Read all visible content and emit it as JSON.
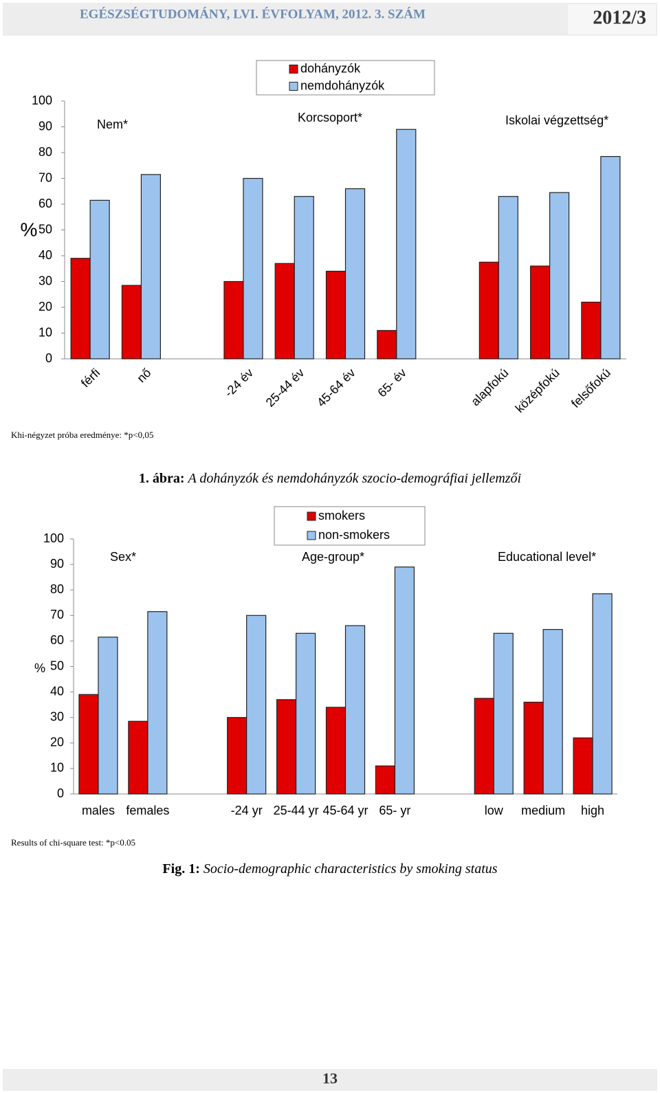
{
  "header": {
    "title": "EGÉSZSÉGTUDOMÁNY, LVI. ÉVFOLYAM, 2012. 3. SZÁM",
    "issue": "2012/3"
  },
  "chart_data": [
    {
      "type": "bar",
      "y_label": "%",
      "annotations": [
        "Nem*",
        "Korcsoport*",
        "Iskolai végzettség*"
      ],
      "categories": [
        "férfi",
        "nő",
        null,
        "-24 év",
        "25-44 év",
        "45-64 év",
        "65- év",
        null,
        "alapfokú",
        "középfokú",
        "felsőfokú"
      ],
      "series": [
        {
          "name": "dohányzók",
          "color": "#e00000",
          "values": [
            39,
            28.5,
            null,
            30,
            37,
            34,
            11,
            null,
            37.5,
            36,
            22
          ]
        },
        {
          "name": "nemdohányzók",
          "color": "#9cc3ee",
          "values": [
            61.5,
            71.5,
            null,
            70,
            63,
            66,
            89,
            null,
            63,
            64.5,
            78.5
          ]
        }
      ],
      "ylim": [
        0,
        100
      ],
      "yticks": [
        0,
        10,
        20,
        30,
        40,
        50,
        60,
        70,
        80,
        90,
        100
      ],
      "grid": false,
      "legend": "top",
      "note": "Khi-négyzet próba eredménye: *p<0,05",
      "caption_label": "1. ábra:",
      "caption": "A dohányzók és nemdohányzók szocio-demográfiai jellemzői"
    },
    {
      "type": "bar",
      "y_label": "%",
      "annotations": [
        "Sex*",
        "Age-group*",
        "Educational level*"
      ],
      "categories": [
        "males",
        "females",
        null,
        "-24 yr",
        "25-44 yr",
        "45-64 yr",
        "65- yr",
        null,
        "low",
        "medium",
        "high"
      ],
      "series": [
        {
          "name": "smokers",
          "color": "#e00000",
          "values": [
            39,
            28.5,
            null,
            30,
            37,
            34,
            11,
            null,
            37.5,
            36,
            22
          ]
        },
        {
          "name": "non-smokers",
          "color": "#9cc3ee",
          "values": [
            61.5,
            71.5,
            null,
            70,
            63,
            66,
            89,
            null,
            63,
            64.5,
            78.5
          ]
        }
      ],
      "ylim": [
        0,
        100
      ],
      "yticks": [
        0,
        10,
        20,
        30,
        40,
        50,
        60,
        70,
        80,
        90,
        100
      ],
      "grid": false,
      "legend": "top",
      "note": "Results of chi-square test: *p<0.05",
      "caption_label": "Fig. 1:",
      "caption": "Socio-demographic characteristics by smoking status"
    }
  ],
  "footer": {
    "page": "13"
  }
}
